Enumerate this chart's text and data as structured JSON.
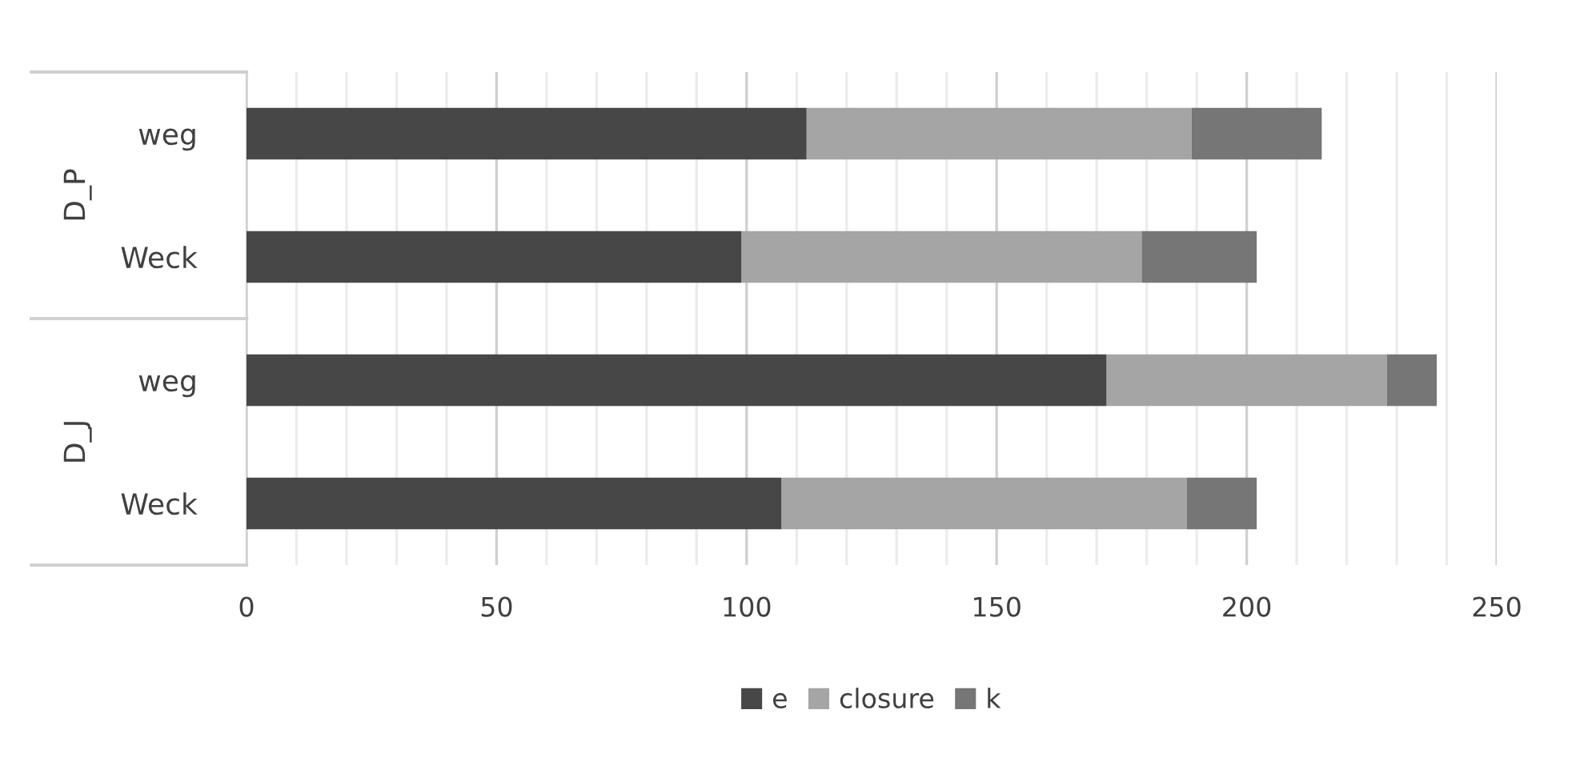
{
  "chart_data": {
    "type": "bar",
    "orientation": "horizontal",
    "stacked": true,
    "categories": [
      "weg",
      "Weck",
      "weg",
      "Weck"
    ],
    "annotations": [
      "D_P",
      "D_J"
    ],
    "series": [
      {
        "name": "e",
        "color": "#474747",
        "values": [
          112,
          99,
          172,
          107
        ]
      },
      {
        "name": "closure",
        "color": "#a5a5a5",
        "values": [
          77,
          80,
          56,
          81
        ]
      },
      {
        "name": "k",
        "color": "#767676",
        "values": [
          26,
          23,
          10,
          14
        ]
      }
    ],
    "xlim": [
      0,
      250
    ],
    "xticks": [
      0,
      {
        "value": 10,
        "label": null
      },
      {
        "value": 20,
        "label": null
      },
      {
        "value": 30,
        "label": null
      },
      {
        "value": 40,
        "label": null
      },
      50,
      {
        "value": 60,
        "label": null
      },
      {
        "value": 70,
        "label": null
      },
      {
        "value": 80,
        "label": null
      },
      {
        "value": 90,
        "label": null
      },
      100,
      {
        "value": 110,
        "label": null
      },
      {
        "value": 120,
        "label": null
      },
      {
        "value": 130,
        "label": null
      },
      {
        "value": 140,
        "label": null
      },
      150,
      {
        "value": 160,
        "label": null
      },
      {
        "value": 170,
        "label": null
      },
      {
        "value": 180,
        "label": null
      },
      {
        "value": 190,
        "label": null
      },
      200,
      {
        "value": 210,
        "label": null
      },
      {
        "value": 220,
        "label": null
      },
      {
        "value": 230,
        "label": null
      },
      {
        "value": 240,
        "label": null
      },
      250
    ],
    "grid": "x",
    "legend": "bottom"
  }
}
